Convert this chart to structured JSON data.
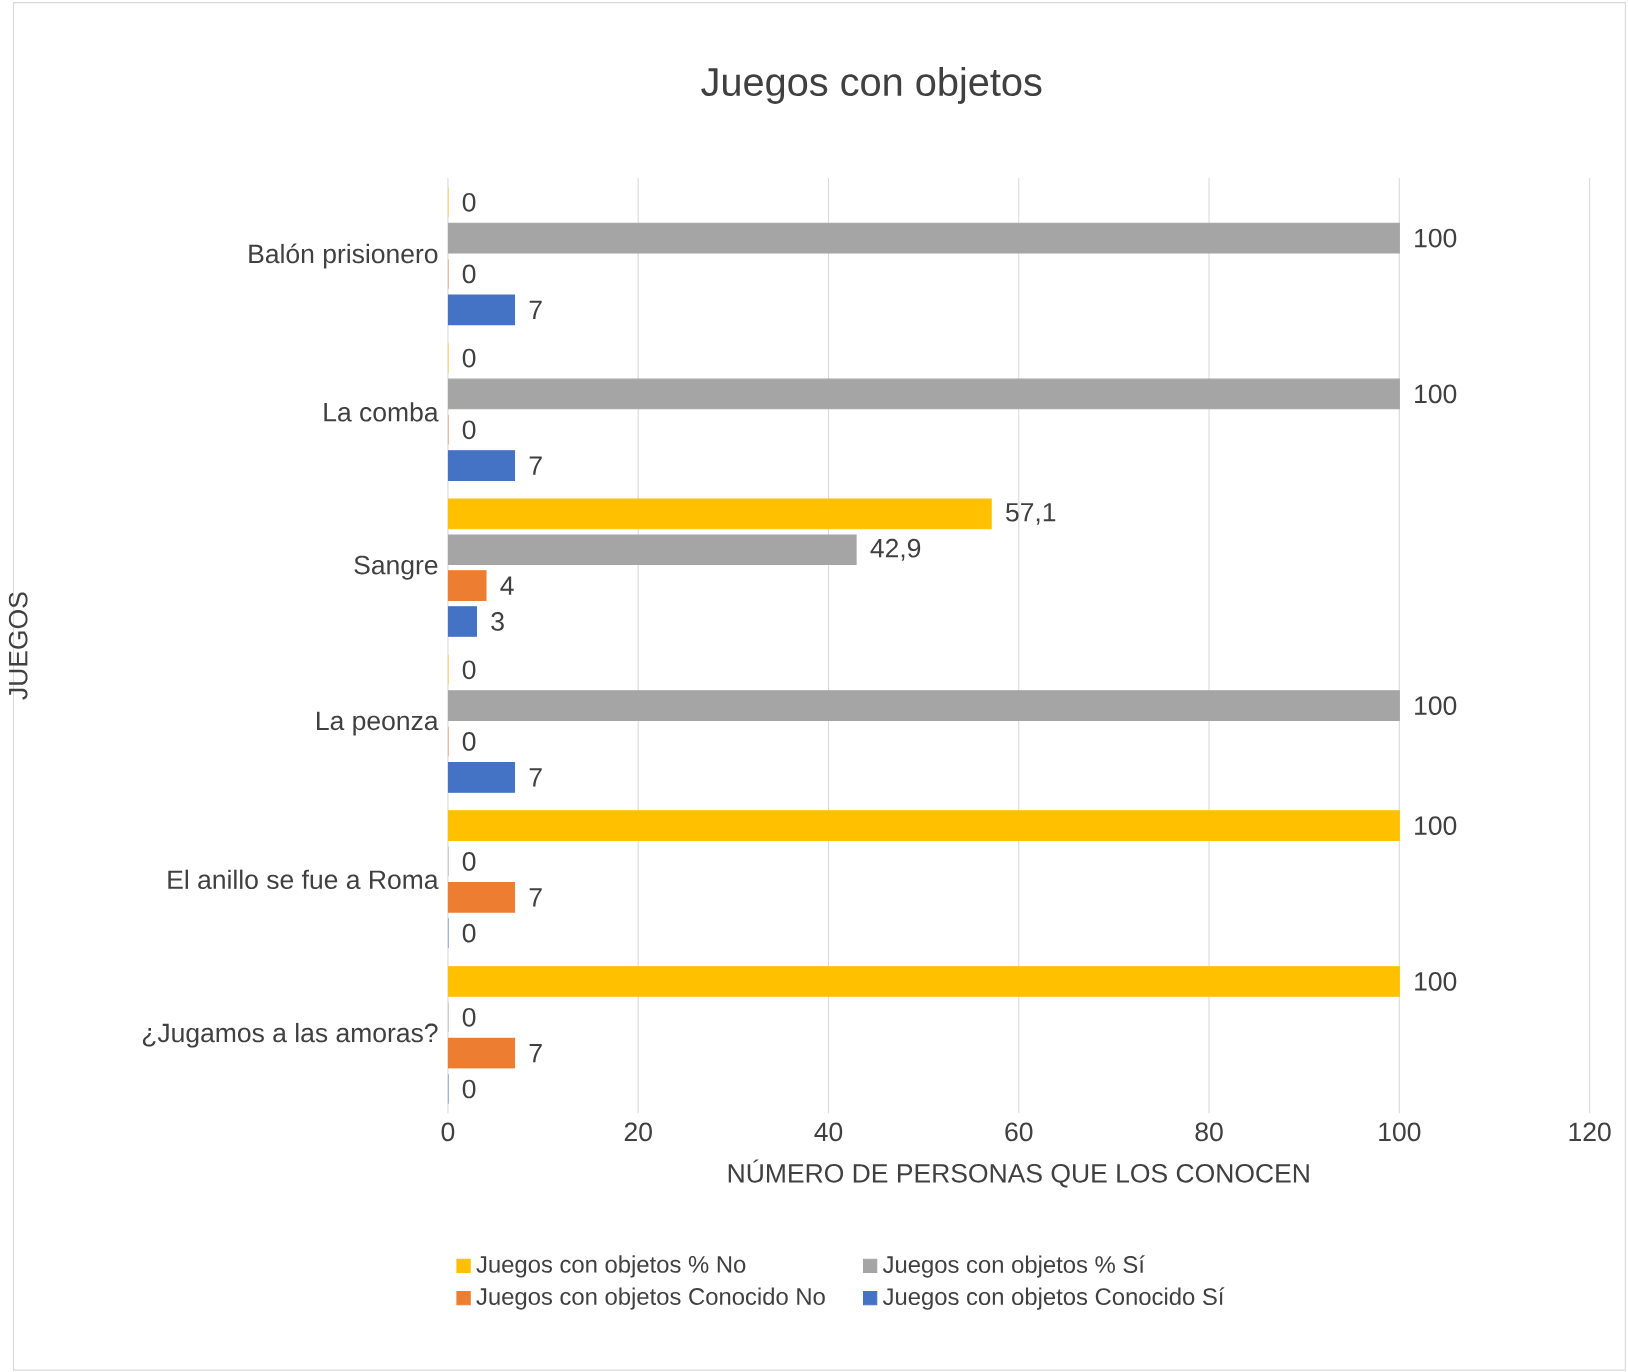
{
  "chart_data": {
    "type": "bar",
    "orientation": "horizontal",
    "title": "Juegos con objetos",
    "xlabel": "NÚMERO DE PERSONAS QUE LOS CONOCEN",
    "ylabel": "JUEGOS",
    "categories": [
      "Balón prisionero",
      "La comba",
      "Sangre",
      "La peonza",
      "El anillo se fue a Roma",
      "¿Jugamos a las amoras?"
    ],
    "series": [
      {
        "name": "Juegos con objetos % No",
        "color": "#ffc000",
        "values": [
          0,
          0,
          57.1,
          0,
          100,
          100
        ],
        "value_labels": [
          "0",
          "0",
          "57,1",
          "0",
          "100",
          "100"
        ]
      },
      {
        "name": "Juegos con objetos % Sí",
        "color": "#a5a5a5",
        "values": [
          100,
          100,
          42.9,
          100,
          0,
          0
        ],
        "value_labels": [
          "100",
          "100",
          "42,9",
          "100",
          "0",
          "0"
        ]
      },
      {
        "name": "Juegos con objetos Conocido No",
        "color": "#ed7d31",
        "values": [
          0,
          0,
          4,
          0,
          7,
          7
        ],
        "value_labels": [
          "0",
          "0",
          "4",
          "0",
          "7",
          "7"
        ]
      },
      {
        "name": "Juegos con objetos Conocido Sí",
        "color": "#4472c4",
        "values": [
          7,
          7,
          3,
          7,
          0,
          0
        ],
        "value_labels": [
          "7",
          "7",
          "3",
          "7",
          "0",
          "0"
        ]
      }
    ],
    "xlim": [
      0,
      120
    ],
    "xticks": [
      0,
      20,
      40,
      60,
      80,
      100,
      120
    ],
    "grid": "x",
    "legend": "bottom"
  }
}
